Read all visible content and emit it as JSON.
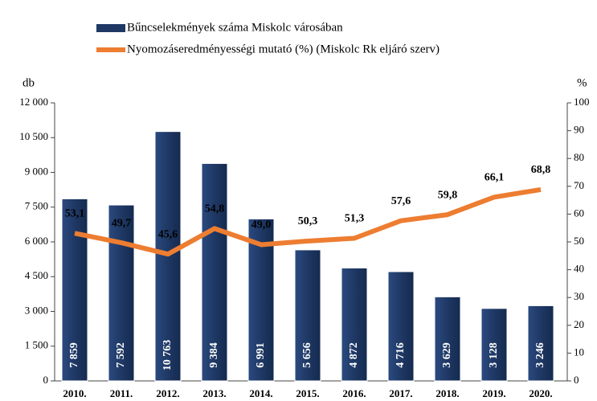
{
  "chart_data": {
    "type": "bar_line",
    "categories": [
      "2010.",
      "2011.",
      "2012.",
      "2013.",
      "2014.",
      "2015.",
      "2016.",
      "2017.",
      "2018.",
      "2019.",
      "2020."
    ],
    "series": [
      {
        "name": "Bűncselekmények száma Miskolc városában",
        "type": "bar",
        "color": "#1f3864",
        "values": [
          7859,
          7592,
          10763,
          9384,
          6991,
          5656,
          4872,
          4716,
          3629,
          3128,
          3246
        ],
        "value_labels": [
          "7 859",
          "7 592",
          "10 763",
          "9 384",
          "6 991",
          "5 656",
          "4 872",
          "4 716",
          "3 629",
          "3 128",
          "3 246"
        ]
      },
      {
        "name": "Nyomozáseredményességi mutató (%) (Miskolc Rk eljáró szerv)",
        "type": "line",
        "axis": "y2",
        "color": "#ed7d31",
        "values": [
          53.1,
          49.7,
          45.6,
          54.8,
          49.0,
          50.3,
          51.3,
          57.6,
          59.8,
          66.1,
          68.8
        ],
        "value_labels": [
          "53,1",
          "49,7",
          "45,6",
          "54,8",
          "49,0",
          "50,3",
          "51,3",
          "57,6",
          "59,8",
          "66,1",
          "68,8"
        ]
      }
    ],
    "ylabel": "db",
    "y2label": "%",
    "ylim": [
      0,
      12000
    ],
    "yticks": [
      0,
      {
        "value": 1500,
        "label": "1 500"
      },
      {
        "value": 3000,
        "label": "3 000"
      },
      {
        "value": 4500,
        "label": "4 500"
      },
      {
        "value": 6000,
        "label": "6 000"
      },
      {
        "value": 7500,
        "label": "7 500"
      },
      {
        "value": 9000,
        "label": "9 000"
      },
      {
        "value": 10500,
        "label": "10 500"
      },
      {
        "value": 12000,
        "label": "12 000"
      }
    ],
    "y2lim": [
      0,
      100
    ],
    "y2ticks": [
      0,
      10,
      20,
      30,
      40,
      50,
      60,
      70,
      80,
      90,
      100
    ],
    "grid": false
  }
}
